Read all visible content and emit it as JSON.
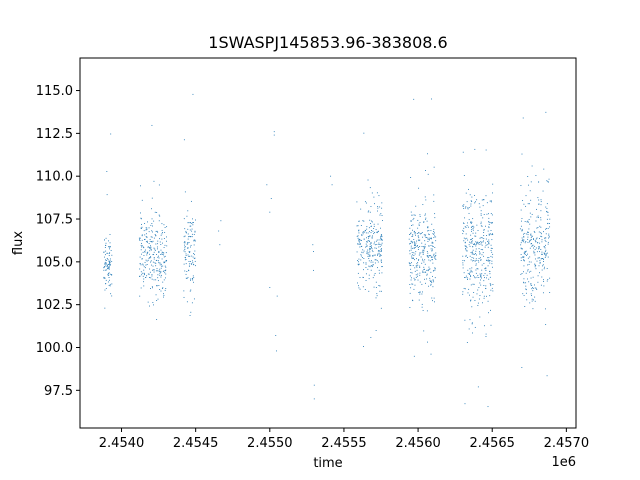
{
  "chart_data": {
    "type": "scatter",
    "title": "1SWASPJ145853.96-383808.6",
    "xlabel": "time",
    "ylabel": "flux",
    "x_offset_label": "1e6",
    "xlim": [
      2453720,
      2457065
    ],
    "ylim": [
      95.3,
      116.9
    ],
    "xticks": [
      2454000,
      2454500,
      2455000,
      2455500,
      2456000,
      2456500,
      2457000
    ],
    "xtick_labels": [
      "2.4540",
      "2.4545",
      "2.4550",
      "2.4555",
      "2.4560",
      "2.4565",
      "2.4570"
    ],
    "yticks": [
      97.5,
      100.0,
      102.5,
      105.0,
      107.5,
      110.0,
      112.5,
      115.0
    ],
    "ytick_labels": [
      "97.5",
      "100.0",
      "102.5",
      "105.0",
      "107.5",
      "110.0",
      "112.5",
      "115.0"
    ],
    "grid": false,
    "marker_color": "#1f77b4",
    "series": [
      {
        "segments": [
          {
            "x_start": 2453880,
            "x_end": 2453935,
            "center": 105.0,
            "spread": 1.6,
            "density": 7
          },
          {
            "x_start": 2454120,
            "x_end": 2454305,
            "center": 105.3,
            "spread": 2.0,
            "density": 6
          },
          {
            "x_start": 2454420,
            "x_end": 2454500,
            "center": 105.5,
            "spread": 2.2,
            "density": 6
          },
          {
            "x_start": 2455585,
            "x_end": 2455760,
            "center": 105.8,
            "spread": 2.3,
            "density": 6
          },
          {
            "x_start": 2455940,
            "x_end": 2456120,
            "center": 105.5,
            "spread": 2.5,
            "density": 7
          },
          {
            "x_start": 2456300,
            "x_end": 2456505,
            "center": 105.5,
            "spread": 3.3,
            "density": 7
          },
          {
            "x_start": 2456690,
            "x_end": 2456890,
            "center": 105.8,
            "spread": 2.8,
            "density": 6
          }
        ],
        "sparse_points": [
          [
            2454655,
            106.8
          ],
          [
            2454663,
            106.0
          ],
          [
            2454670,
            107.4
          ],
          [
            2454980,
            109.5
          ],
          [
            2455000,
            107.9
          ],
          [
            2455010,
            108.7
          ],
          [
            2455030,
            112.6
          ],
          [
            2455040,
            100.7
          ],
          [
            2455045,
            99.8
          ],
          [
            2455050,
            103.0
          ],
          [
            2455290,
            106.0
          ],
          [
            2455295,
            104.5
          ],
          [
            2455295,
            105.6
          ],
          [
            2455300,
            97.8
          ],
          [
            2455300,
            97.0
          ],
          [
            2455410,
            110.0
          ],
          [
            2455420,
            109.5
          ],
          [
            2455030,
            112.4
          ],
          [
            2455000,
            103.5
          ]
        ]
      }
    ]
  }
}
